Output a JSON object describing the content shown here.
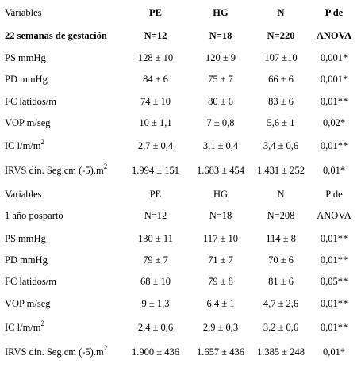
{
  "sections": [
    {
      "header": [
        [
          "Variables",
          "PE",
          "HG",
          "N",
          "P de"
        ],
        [
          "22 semanas de gestación",
          "N=12",
          "N=18",
          "N=220",
          "ANOVA"
        ]
      ],
      "rows": [
        [
          "PS mmHg",
          "128 ± 10",
          "120 ± 9",
          "107 ±10",
          "0,001*"
        ],
        [
          "PD mmHg",
          "84 ± 6",
          "75 ± 7",
          "66 ± 6",
          "0,001*"
        ],
        [
          "FC latidos/m",
          "74 ± 10",
          "80 ± 6",
          "83 ± 6",
          "0,01**"
        ],
        [
          "VOP m/seg",
          "10 ± 1,1",
          "7 ± 0,8",
          "5,6 ± 1",
          "0,02*"
        ],
        [
          {
            "text": "IC l/m/m",
            "sup": "2"
          },
          "2,7 ± 0,4",
          "3,1 ± 0,4",
          "3,4 ± 0,6",
          "0,01**"
        ],
        [
          {
            "text": "IRVS din. Seg.cm (-5).m",
            "sup": "2"
          },
          "1.994 ± 151",
          "1.683 ± 454",
          "1.431 ± 252",
          "0,01*"
        ]
      ]
    },
    {
      "header": [
        [
          "Variables",
          "PE",
          "HG",
          "N",
          "P de"
        ],
        [
          "1 año posparto",
          "N=12",
          "N=18",
          "N=208",
          "ANOVA"
        ]
      ],
      "rows": [
        [
          "PS mmHg",
          "130 ± 11",
          "117 ± 10",
          "114 ± 8",
          "0,01**"
        ],
        [
          "PD mmHg",
          "79 ± 7",
          "71 ± 7",
          "70 ± 6",
          "0,01**"
        ],
        [
          "FC latidos/m",
          "68 ± 10",
          "79 ± 8",
          "81 ± 6",
          "0,05**"
        ],
        [
          "VOP m/seg",
          "9 ± 1,3",
          "6,4 ± 1",
          "4,7 ± 2,6",
          "0,01**"
        ],
        [
          {
            "text": "IC l/m/m",
            "sup": "2"
          },
          "2,4 ± 0,6",
          "2,9 ± 0,3",
          "3,2 ± 0,6",
          "0,01**"
        ],
        [
          {
            "text": "IRVS din. Seg.cm (-5).m",
            "sup": "2"
          },
          "1.900 ± 436",
          "1.657 ± 436",
          "1.385 ± 248",
          "0,01*"
        ]
      ]
    }
  ]
}
